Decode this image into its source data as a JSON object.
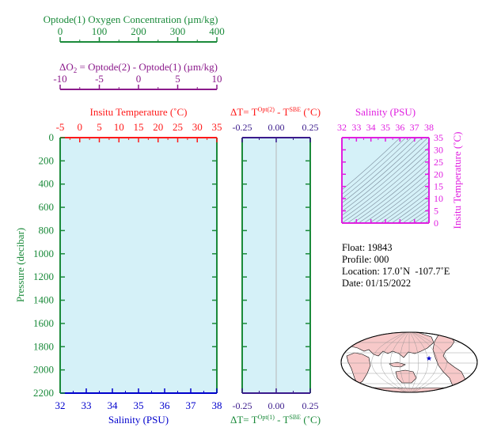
{
  "colors": {
    "oxygen": "#1a8a3a",
    "delta_o2": "#8b1a8b",
    "temperature": "#ff1a1a",
    "salinity": "#0000cc",
    "pressure": "#1a8a3a",
    "delta_t": "#3a1a8b",
    "ts_axis": "#e020e0",
    "panel_fill": "#d5f1f8",
    "land": "#f7c9c9",
    "marker": "#0000cc"
  },
  "oxygen_axis": {
    "label": "Optode(1) Oxygen Concentration (µm/kg)",
    "ticks": [
      "0",
      "100",
      "200",
      "300",
      "400"
    ]
  },
  "delta_o2_axis": {
    "label_prefix": "ΔO",
    "label_sub": "2",
    "label_rest": " = Optode(2) - Optode(1)    (µm/kg)",
    "ticks": [
      "-10",
      "-5",
      "0",
      "5",
      "10"
    ]
  },
  "temperature_axis": {
    "label": "Insitu Temperature (˚C)",
    "ticks": [
      "-5",
      "0",
      "5",
      "10",
      "15",
      "20",
      "25",
      "30",
      "35"
    ]
  },
  "salinity_axis": {
    "label": "Salinity (PSU)",
    "ticks": [
      "32",
      "33",
      "34",
      "35",
      "36",
      "37",
      "38"
    ]
  },
  "pressure_axis": {
    "label": "Pressure (decibar)",
    "ticks": [
      "0",
      "200",
      "400",
      "600",
      "800",
      "1000",
      "1200",
      "1400",
      "1600",
      "1800",
      "2000",
      "2200"
    ]
  },
  "delta_t_top": {
    "prefix": "ΔT= T",
    "sup1": "Opt(2)",
    "mid": " - T",
    "sup2": "SBE",
    "suffix": " (˚C)",
    "ticks": [
      "-0.25",
      "0.00",
      "0.25"
    ]
  },
  "delta_t_bottom": {
    "prefix": "ΔT= T",
    "sup1": "Opt(1)",
    "mid": " - T",
    "sup2": "SBE",
    "suffix": " (˚C)",
    "ticks": [
      "-0.25",
      "0.00",
      "0.25"
    ]
  },
  "ts_diagram": {
    "top_label": "Salinity (PSU)",
    "top_ticks": [
      "32",
      "33",
      "34",
      "35",
      "36",
      "37",
      "38"
    ],
    "right_label": "Insitu Temperature (˚C)",
    "right_ticks": [
      "0",
      "5",
      "10",
      "15",
      "20",
      "25",
      "30",
      "35"
    ]
  },
  "info": {
    "float_label": "Float:",
    "float_value": "19843",
    "profile_label": "Profile:",
    "profile_value": "000",
    "location_label": "Location:",
    "location_value": "17.0˚N  -107.7˚E",
    "date_label": "Date:",
    "date_value": "01/15/2022"
  },
  "chart_data": {
    "type": "line",
    "title": "",
    "series": [],
    "x_axes": {
      "oxygen": {
        "label": "Optode(1) Oxygen Concentration (µm/kg)",
        "range": [
          0,
          400
        ]
      },
      "delta_o2": {
        "label": "ΔO2 = Optode(2) - Optode(1) (µm/kg)",
        "range": [
          -10,
          10
        ]
      },
      "temperature": {
        "label": "Insitu Temperature (˚C)",
        "range": [
          -5,
          35
        ]
      },
      "salinity": {
        "label": "Salinity (PSU)",
        "range": [
          32,
          38
        ]
      },
      "delta_t": {
        "label": "ΔT= T Opt - T SBE (˚C)",
        "range": [
          -0.25,
          0.25
        ]
      }
    },
    "y_axis": {
      "label": "Pressure (decibar)",
      "range": [
        0,
        2200
      ],
      "inverted": true
    },
    "ts_diagram": {
      "x_range": [
        32,
        38
      ],
      "y_range": [
        0,
        35
      ]
    },
    "map_marker": {
      "lat": 17.0,
      "lon": -107.7
    }
  }
}
